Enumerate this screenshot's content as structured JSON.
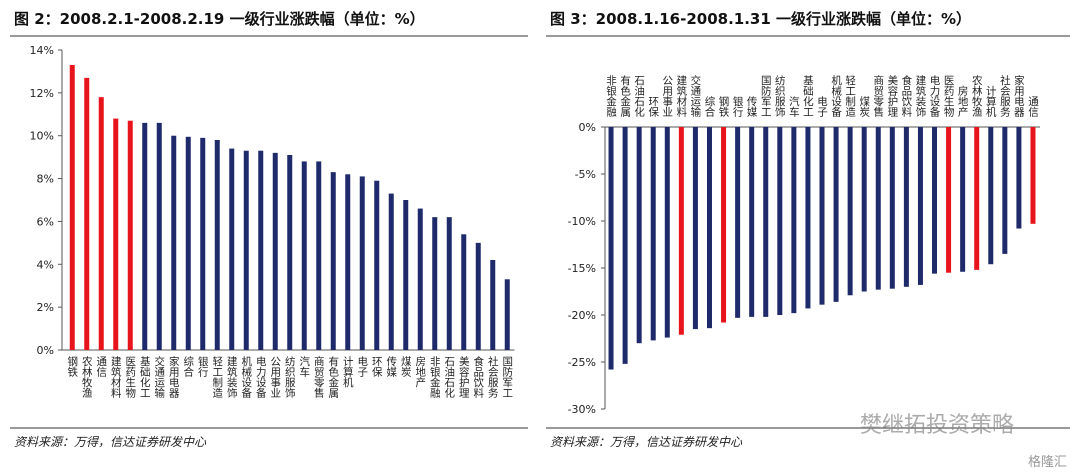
{
  "chart_data": [
    {
      "type": "bar",
      "title": "图 2：2008.2.1-2008.2.19 一级行业涨跌幅（单位：%）",
      "categories": [
        "钢铁",
        "农林牧渔",
        "通信",
        "建筑材料",
        "医药生物",
        "基础化工",
        "交通运输",
        "家用电器",
        "综合",
        "银行",
        "轻工制造",
        "建筑装饰",
        "机械设备",
        "电力设备",
        "公用事业",
        "纺织服饰",
        "汽车",
        "商贸零售",
        "有色金属",
        "计算机",
        "电子",
        "环保",
        "传媒",
        "煤炭",
        "房地产",
        "非银金融",
        "石油石化",
        "美容护理",
        "食品饮料",
        "社会服务",
        "国防军工"
      ],
      "values": [
        13.3,
        12.7,
        11.8,
        10.8,
        10.7,
        10.6,
        10.6,
        10.0,
        9.95,
        9.9,
        9.8,
        9.4,
        9.3,
        9.3,
        9.2,
        9.1,
        8.8,
        8.8,
        8.3,
        8.2,
        8.1,
        7.9,
        7.3,
        7.0,
        6.6,
        6.2,
        6.2,
        5.4,
        5.0,
        4.2,
        3.3
      ],
      "colors": [
        "#e8141b",
        "#e8141b",
        "#e8141b",
        "#e8141b",
        "#e8141b",
        "#1f2a6b",
        "#1f2a6b",
        "#1f2a6b",
        "#1f2a6b",
        "#1f2a6b",
        "#1f2a6b",
        "#1f2a6b",
        "#1f2a6b",
        "#1f2a6b",
        "#1f2a6b",
        "#1f2a6b",
        "#1f2a6b",
        "#1f2a6b",
        "#1f2a6b",
        "#1f2a6b",
        "#1f2a6b",
        "#1f2a6b",
        "#1f2a6b",
        "#1f2a6b",
        "#1f2a6b",
        "#1f2a6b",
        "#1f2a6b",
        "#1f2a6b",
        "#1f2a6b",
        "#1f2a6b",
        "#1f2a6b"
      ],
      "ylim": [
        0,
        14
      ],
      "yticks": [
        {
          "value": 0,
          "label": "0%"
        },
        {
          "value": 2,
          "label": "2%"
        },
        {
          "value": 4,
          "label": "4%"
        },
        {
          "value": 6,
          "label": "6%"
        },
        {
          "value": 8,
          "label": "8%"
        },
        {
          "value": 10,
          "label": "10%"
        },
        {
          "value": 12,
          "label": "12%"
        },
        {
          "value": 14,
          "label": "14%"
        }
      ],
      "source": "资料来源：万得，信达证券研发中心"
    },
    {
      "type": "bar",
      "title": "图 3：2008.1.16-2008.1.31 一级行业涨跌幅（单位：%）",
      "categories": [
        "非银金融",
        "有色金属",
        "石油石化",
        "环保",
        "公用事业",
        "建筑材料",
        "交通运输",
        "综合",
        "钢铁",
        "银行",
        "传媒",
        "国防军工",
        "纺织服饰",
        "汽车",
        "基础化工",
        "电子",
        "机械设备",
        "轻工制造",
        "煤炭",
        "商贸零售",
        "美容护理",
        "食品饮料",
        "建筑装饰",
        "电力设备",
        "医药生物",
        "房地产",
        "农林牧渔",
        "计算机",
        "社会服务",
        "家用电器",
        "通信"
      ],
      "values": [
        -25.8,
        -25.2,
        -23.0,
        -22.7,
        -22.4,
        -22.1,
        -21.5,
        -21.4,
        -20.8,
        -20.3,
        -20.2,
        -20.2,
        -20.0,
        -19.8,
        -19.3,
        -18.9,
        -18.6,
        -17.9,
        -17.5,
        -17.3,
        -17.2,
        -17.0,
        -16.8,
        -15.6,
        -15.5,
        -15.4,
        -15.2,
        -14.6,
        -13.5,
        -10.8,
        -10.3
      ],
      "colors": [
        "#1f2a6b",
        "#1f2a6b",
        "#1f2a6b",
        "#1f2a6b",
        "#1f2a6b",
        "#e8141b",
        "#1f2a6b",
        "#1f2a6b",
        "#e8141b",
        "#1f2a6b",
        "#1f2a6b",
        "#1f2a6b",
        "#1f2a6b",
        "#1f2a6b",
        "#1f2a6b",
        "#1f2a6b",
        "#1f2a6b",
        "#1f2a6b",
        "#1f2a6b",
        "#1f2a6b",
        "#1f2a6b",
        "#1f2a6b",
        "#1f2a6b",
        "#1f2a6b",
        "#e8141b",
        "#1f2a6b",
        "#e8141b",
        "#1f2a6b",
        "#1f2a6b",
        "#1f2a6b",
        "#e8141b"
      ],
      "ylim": [
        -30,
        0
      ],
      "yticks": [
        {
          "value": 0,
          "label": "0%"
        },
        {
          "value": -5,
          "label": "-5%"
        },
        {
          "value": -10,
          "label": "-10%"
        },
        {
          "value": -15,
          "label": "-15%"
        },
        {
          "value": -20,
          "label": "-20%"
        },
        {
          "value": -25,
          "label": "-25%"
        },
        {
          "value": -30,
          "label": "-30%"
        }
      ],
      "source": "资料来源：万得，信达证券研发中心"
    }
  ],
  "watermark": "樊继拓投资策略",
  "brand": "格隆汇"
}
